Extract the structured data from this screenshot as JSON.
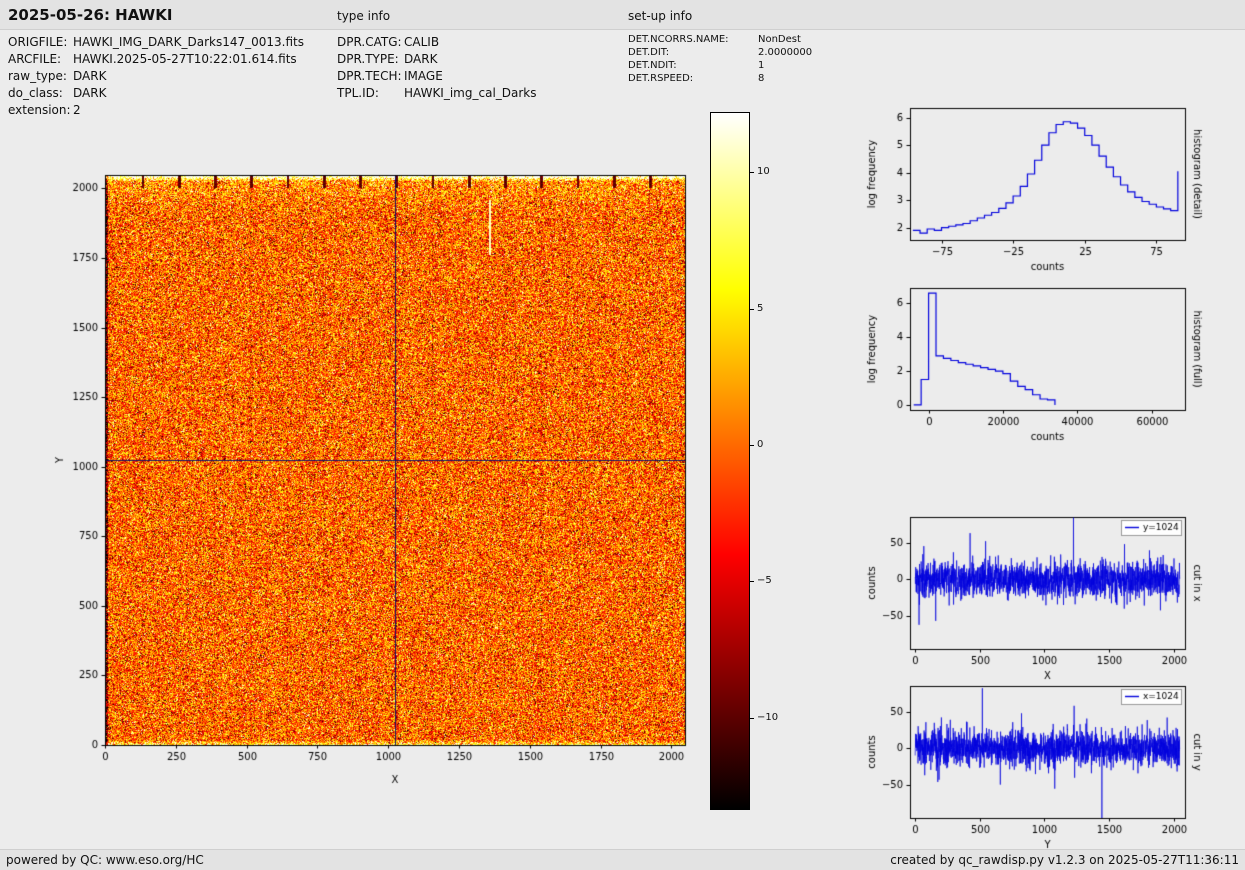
{
  "header": {
    "title": "2025-05-26: HAWKI",
    "type_info_label": "type info",
    "setup_info_label": "set-up info"
  },
  "file_info": {
    "rows": [
      {
        "label": "ORIGFILE:",
        "value": "HAWKI_IMG_DARK_Darks147_0013.fits"
      },
      {
        "label": "ARCFILE:",
        "value": "HAWKI.2025-05-27T10:22:01.614.fits"
      },
      {
        "label": "raw_type:",
        "value": "DARK"
      },
      {
        "label": "do_class:",
        "value": "DARK"
      },
      {
        "label": "extension:",
        "value": "2"
      }
    ]
  },
  "type_info": {
    "rows": [
      {
        "label": "DPR.CATG:",
        "value": "CALIB"
      },
      {
        "label": "DPR.TYPE:",
        "value": "DARK"
      },
      {
        "label": "DPR.TECH:",
        "value": "IMAGE"
      },
      {
        "label": "TPL.ID:",
        "value": "HAWKI_img_cal_Darks"
      }
    ]
  },
  "setup_info": {
    "rows": [
      {
        "label": "DET.NCORRS.NAME:",
        "value": "NonDest"
      },
      {
        "label": "DET.DIT:",
        "value": "2.0000000"
      },
      {
        "label": "DET.NDIT:",
        "value": "1"
      },
      {
        "label": "DET.RSPEED:",
        "value": "8"
      }
    ]
  },
  "footer": {
    "left": "powered by QC: www.eso.org/HC",
    "right": "created by qc_rawdisp.py v1.2.3 on 2025-05-27T11:36:11"
  },
  "chart_data": [
    {
      "id": "main_image",
      "type": "heatmap",
      "xlabel": "X",
      "ylabel": "Y",
      "xlim": [
        0,
        2048
      ],
      "ylim": [
        0,
        2048
      ],
      "xticks": [
        0,
        250,
        500,
        750,
        1000,
        1250,
        1500,
        1750,
        2000
      ],
      "yticks": [
        0,
        250,
        500,
        750,
        1000,
        1250,
        1500,
        1750,
        2000
      ],
      "crosshair": {
        "x": 1024,
        "y": 1024
      },
      "noise": {
        "mean_counts": 0,
        "sigma_counts": 4.5
      },
      "colorbar": {
        "vmin": -13.3,
        "vmax": 12.2,
        "ticks": [
          10,
          5,
          0,
          -5,
          -10
        ],
        "colormap": "hot"
      }
    },
    {
      "id": "hist_detail",
      "type": "line",
      "step": true,
      "color": "#0000dd",
      "xlabel": "counts",
      "ylabel": "log frequency",
      "right_label": "histogram (detail)",
      "xlim": [
        -97,
        95
      ],
      "ylim": [
        1.55,
        6.35
      ],
      "xticks": [
        -75,
        -25,
        25,
        75
      ],
      "yticks": [
        2,
        3,
        4,
        5,
        6
      ],
      "x": [
        -95,
        -90,
        -85,
        -80,
        -75,
        -70,
        -65,
        -60,
        -55,
        -50,
        -45,
        -40,
        -35,
        -30,
        -25,
        -20,
        -15,
        -10,
        -5,
        0,
        5,
        10,
        15,
        20,
        25,
        30,
        35,
        40,
        45,
        50,
        55,
        60,
        65,
        70,
        75,
        80,
        85,
        90
      ],
      "y": [
        1.9,
        1.8,
        1.95,
        1.9,
        2.0,
        2.05,
        2.1,
        2.15,
        2.25,
        2.35,
        2.45,
        2.55,
        2.7,
        2.9,
        3.15,
        3.5,
        3.95,
        4.45,
        5.0,
        5.45,
        5.75,
        5.85,
        5.8,
        5.62,
        5.35,
        5.0,
        4.6,
        4.2,
        3.85,
        3.55,
        3.3,
        3.1,
        2.95,
        2.85,
        2.75,
        2.68,
        2.62,
        4.05
      ]
    },
    {
      "id": "hist_full",
      "type": "line",
      "step": true,
      "color": "#0000dd",
      "xlabel": "counts",
      "ylabel": "log frequency",
      "right_label": "histogram (full)",
      "xlim": [
        -5000,
        69000
      ],
      "ylim": [
        -0.3,
        6.9
      ],
      "xticks": [
        0,
        20000,
        40000,
        60000
      ],
      "yticks": [
        0,
        2,
        4,
        6
      ],
      "x": [
        -4000,
        -2000,
        0,
        2000,
        4000,
        6000,
        8000,
        10000,
        12000,
        14000,
        16000,
        18000,
        20000,
        22000,
        24000,
        26000,
        28000,
        30000,
        32000,
        34000
      ],
      "y": [
        0,
        1.5,
        6.6,
        2.9,
        2.75,
        2.62,
        2.5,
        2.4,
        2.3,
        2.2,
        2.1,
        2.0,
        1.85,
        1.4,
        1.1,
        0.9,
        0.6,
        0.35,
        0.3,
        0
      ]
    },
    {
      "id": "cut_x",
      "type": "line",
      "color": "#0000dd",
      "legend": "y=1024",
      "xlabel": "X",
      "ylabel": "counts",
      "right_label": "cut in x",
      "xlim": [
        -40,
        2088
      ],
      "ylim": [
        -95,
        85
      ],
      "xticks": [
        0,
        500,
        1000,
        1500,
        2000
      ],
      "yticks": [
        -50,
        0,
        50
      ],
      "n": 2048,
      "noise_sigma": 12,
      "spikes": [
        {
          "x": 30,
          "v": -62
        },
        {
          "x": 425,
          "v": 63
        },
        {
          "x": 545,
          "v": 52
        },
        {
          "x": 1225,
          "v": 84
        },
        {
          "x": 1620,
          "v": 48
        }
      ]
    },
    {
      "id": "cut_y",
      "type": "line",
      "color": "#0000dd",
      "legend": "x=1024",
      "xlabel": "Y",
      "ylabel": "counts",
      "right_label": "cut in y",
      "xlim": [
        -40,
        2088
      ],
      "ylim": [
        -95,
        85
      ],
      "xticks": [
        0,
        500,
        1000,
        1500,
        2000
      ],
      "yticks": [
        -50,
        0,
        50
      ],
      "n": 2048,
      "noise_sigma": 12,
      "spikes": [
        {
          "x": 520,
          "v": 82
        },
        {
          "x": 1080,
          "v": -55
        },
        {
          "x": 1230,
          "v": 58
        },
        {
          "x": 1445,
          "v": -118
        },
        {
          "x": 1950,
          "v": 42
        }
      ]
    }
  ]
}
